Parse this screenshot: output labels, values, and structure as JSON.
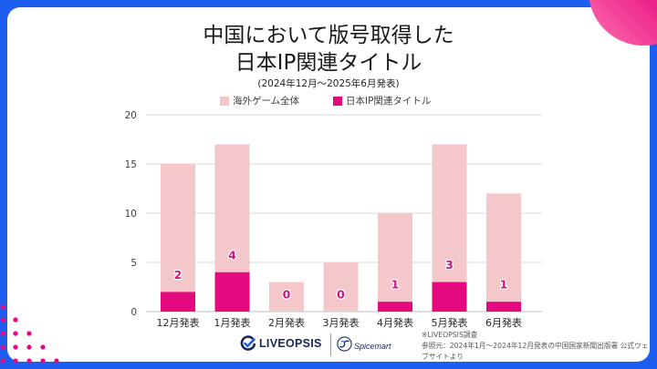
{
  "colors": {
    "frame": "#1d5ef0",
    "accent": "#e5097f",
    "bar_light": "#f4c7ca",
    "logo_navy": "#1b2756"
  },
  "chart_data": {
    "type": "bar",
    "overlapping_bars": true,
    "title_lines": [
      "中国において版号取得した",
      "日本IP関連タイトル"
    ],
    "subtitle": "(2024年12月～2025年6月発表)",
    "categories": [
      "12月発表",
      "1月発表",
      "2月発表",
      "3月発表",
      "4月発表",
      "5月発表",
      "6月発表"
    ],
    "series": [
      {
        "name": "海外ゲーム全体",
        "values": [
          15,
          17,
          3,
          5,
          10,
          17,
          12
        ],
        "color": "#f4c7ca"
      },
      {
        "name": "日本IP関連タイトル",
        "values": [
          2,
          4,
          0,
          0,
          1,
          3,
          1
        ],
        "color": "#e5097f"
      }
    ],
    "yticks": [
      0,
      5,
      10,
      15,
      20
    ],
    "ylim": [
      0,
      20
    ],
    "grid": true
  },
  "footer": {
    "logos": {
      "liveopsis": "LIVEOPSIS",
      "liveopsis_icon": "liveopsis-logo-icon",
      "spicemart": "Spicemart",
      "spicemart_icon": "spicemart-logo-icon"
    },
    "notes": [
      "※LIVEOPSIS調査",
      "参照元：2024年1月～2024年12月発表の中国国家新聞出版署 公式ウェ",
      "ブサイトより"
    ]
  }
}
